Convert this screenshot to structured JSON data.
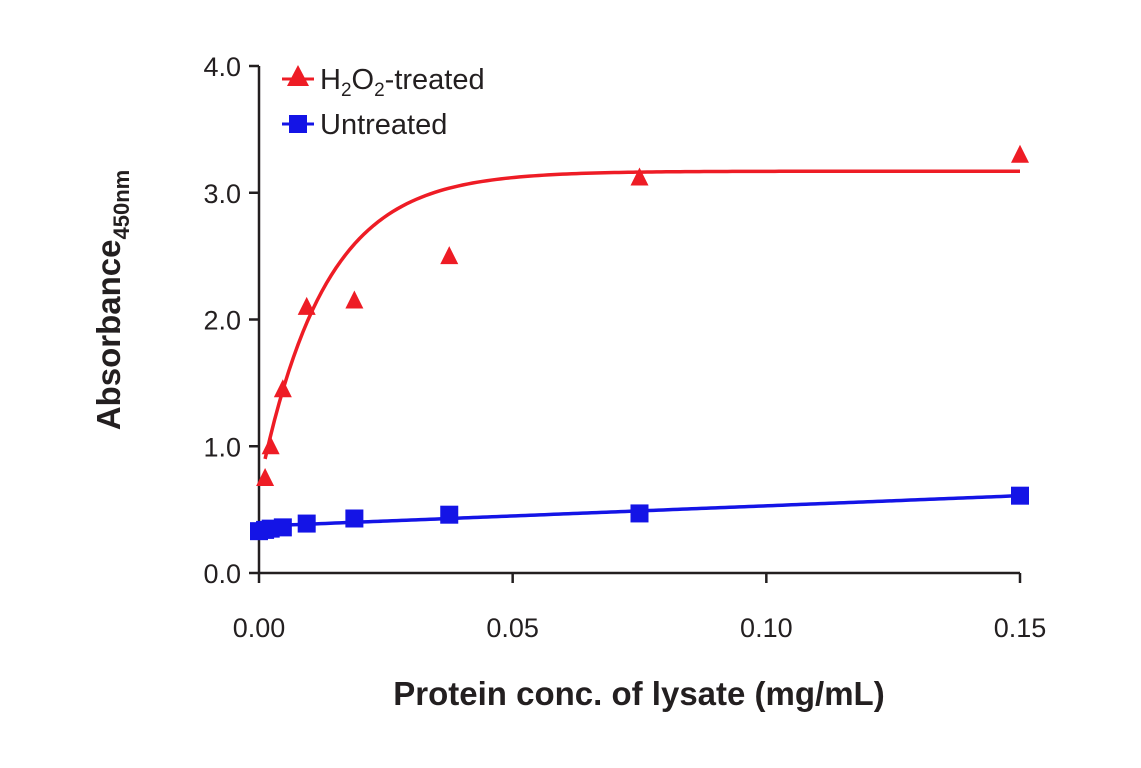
{
  "chart_data": {
    "type": "scatter",
    "xlabel": "Protein conc. of lysate (mg/mL)",
    "ylabel": {
      "main": "Absorbance",
      "sub": "450nm"
    },
    "xlim": [
      0,
      0.15
    ],
    "ylim": [
      0,
      4.0
    ],
    "x_ticks": [
      0,
      0.05,
      0.1,
      0.15
    ],
    "x_tick_labels": [
      "0.00",
      "0.05",
      "0.10",
      "0.15"
    ],
    "y_ticks": [
      0,
      1,
      2,
      3,
      4
    ],
    "y_tick_labels": [
      "0.0",
      "1.0",
      "2.0",
      "3.0",
      "4.0"
    ],
    "grid": false,
    "legend_position": "top-left",
    "series": [
      {
        "name": "H2O2-treated",
        "legend": {
          "pre": "H",
          "sub1": "2",
          "mid": "O",
          "sub2": "2",
          "post": "-treated"
        },
        "color": "#ee1c25",
        "marker": "triangle",
        "x": [
          0.0012,
          0.0023,
          0.0047,
          0.0094,
          0.0188,
          0.0375,
          0.075,
          0.15
        ],
        "y": [
          0.75,
          1.0,
          1.45,
          2.1,
          2.15,
          2.5,
          3.12,
          3.3
        ],
        "fit": {
          "model": "exponential_rise",
          "y0": 0.9,
          "ymax": 3.17,
          "k": 78
        }
      },
      {
        "name": "Untreated",
        "color": "#1414e6",
        "marker": "square",
        "x": [
          0.0,
          0.0012,
          0.0023,
          0.0047,
          0.0094,
          0.0188,
          0.0375,
          0.075,
          0.15
        ],
        "y": [
          0.33,
          0.34,
          0.35,
          0.36,
          0.39,
          0.43,
          0.46,
          0.47,
          0.61
        ],
        "fit": {
          "model": "linear",
          "intercept": 0.37,
          "slope": 1.6
        }
      }
    ]
  }
}
